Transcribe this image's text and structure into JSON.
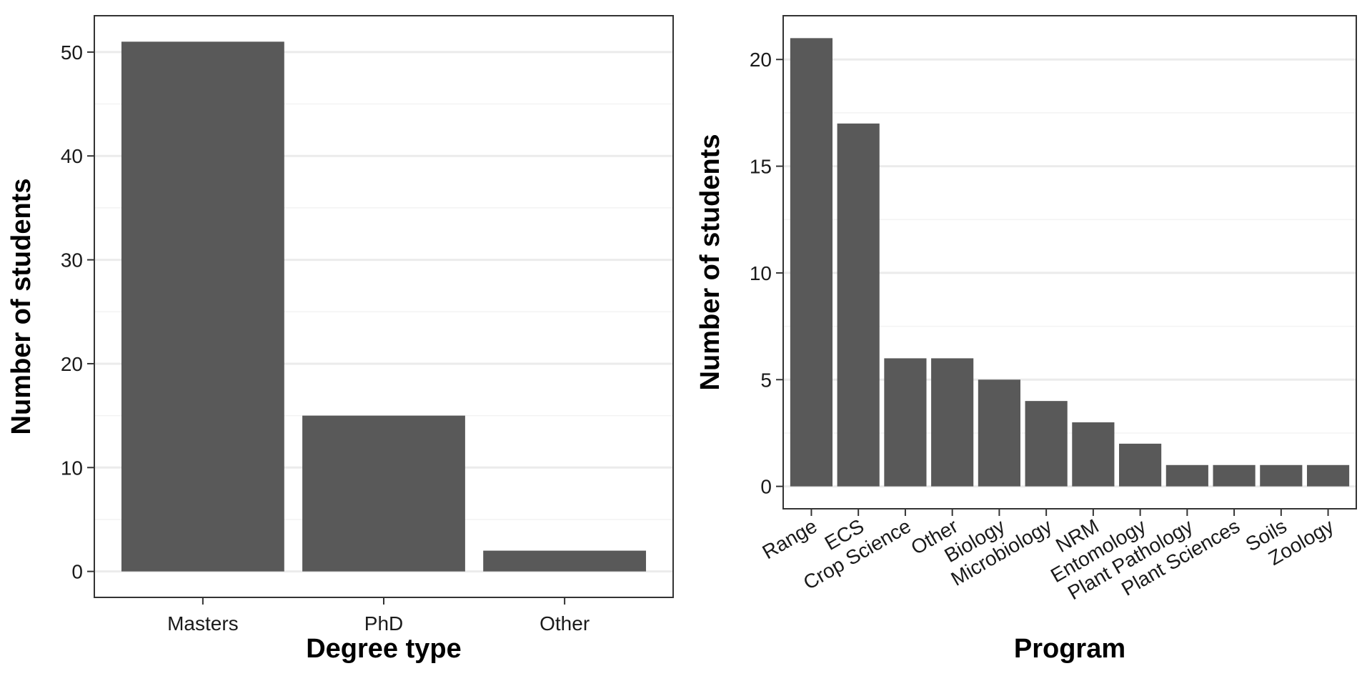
{
  "colors": {
    "bar": "#595959",
    "grid_major": "#ebebeb",
    "grid_minor": "#f3f3f3",
    "panel_border": "#333333",
    "background": "#ffffff"
  },
  "chart_data": [
    {
      "type": "bar",
      "title": "",
      "xlabel": "Degree type",
      "ylabel": "Number of students",
      "categories": [
        "Masters",
        "PhD",
        "Other"
      ],
      "values": [
        51,
        15,
        2
      ],
      "ylim": [
        -2.5,
        53.5
      ],
      "yticks": [
        0,
        10,
        20,
        30,
        40,
        50
      ],
      "grid": "horizontal",
      "legend": "none"
    },
    {
      "type": "bar",
      "title": "",
      "xlabel": "Program",
      "ylabel": "Number of students",
      "categories": [
        "Range",
        "ECS",
        "Crop Science",
        "Other",
        "Biology",
        "Microbiology",
        "NRM",
        "Entomology",
        "Plant Pathology",
        "Plant Sciences",
        "Soils",
        "Zoology"
      ],
      "values": [
        21,
        17,
        6,
        6,
        5,
        4,
        3,
        2,
        1,
        1,
        1,
        1
      ],
      "ylim": [
        -1.05,
        22.05
      ],
      "yticks": [
        0,
        5,
        10,
        15,
        20
      ],
      "grid": "horizontal",
      "legend": "none"
    }
  ]
}
